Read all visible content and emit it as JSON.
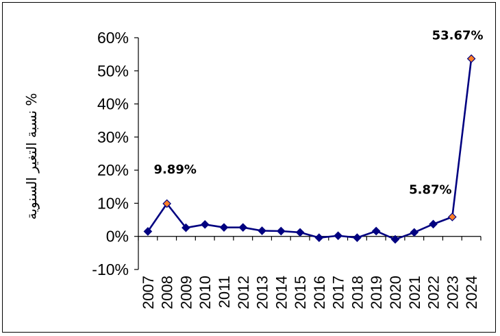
{
  "chart_data": {
    "type": "line",
    "ylabel": "نسبة التغير السنوية %",
    "xlabel": "",
    "title": "",
    "grid": false,
    "legend": "none",
    "ylim": [
      -10,
      60
    ],
    "ytick_step": 10,
    "ytick_suffix": "%",
    "categories": [
      "2007",
      "2008",
      "2009",
      "2010",
      "2011",
      "2012",
      "2013",
      "2014",
      "2015",
      "2016",
      "2017",
      "2018",
      "2019",
      "2020",
      "2021",
      "2022",
      "2023",
      "2024"
    ],
    "series": [
      {
        "values": [
          1.5,
          9.89,
          2.6,
          3.6,
          2.7,
          2.7,
          1.7,
          1.6,
          1.2,
          -0.4,
          0.2,
          -0.4,
          1.6,
          -0.9,
          1.2,
          3.7,
          5.87,
          53.67
        ],
        "color": "#000080"
      }
    ],
    "highlighted_points": [
      {
        "category": "2008",
        "label": "9.89%"
      },
      {
        "category": "2023",
        "label": "5.87%"
      },
      {
        "category": "2024",
        "label": "53.67%"
      }
    ],
    "colors": {
      "line": "#000080",
      "marker": "#000080",
      "highlight_marker": "#FF7F27",
      "axis": "#000000"
    }
  }
}
